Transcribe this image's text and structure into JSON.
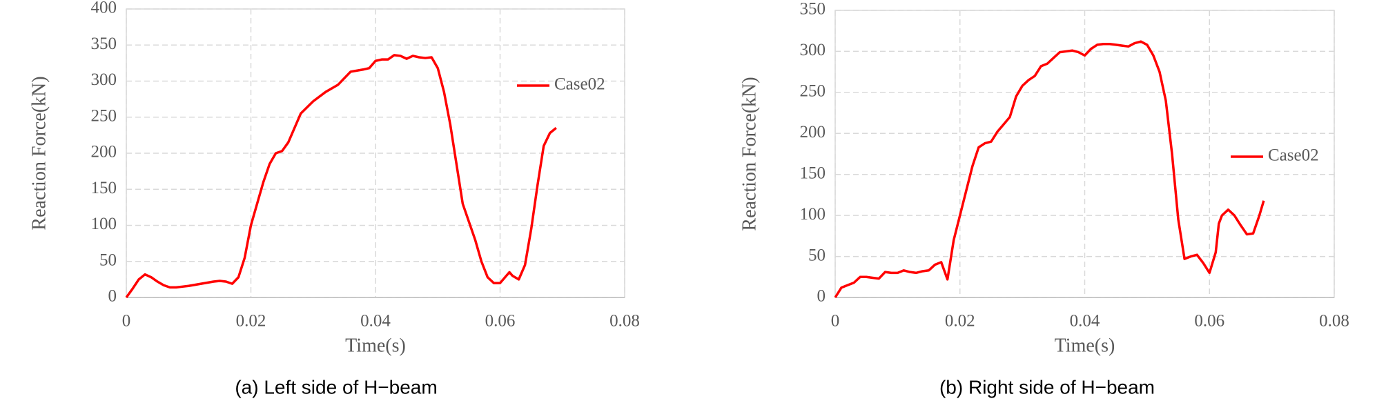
{
  "chart_data": [
    {
      "type": "line",
      "caption": "(a) Left side of H−beam",
      "xlabel": "Time(s)",
      "ylabel": "Reaction Force(kN)",
      "xlim": [
        0,
        0.08
      ],
      "xticks": [
        0,
        0.02,
        0.04,
        0.06,
        0.08
      ],
      "ylim": [
        0,
        400
      ],
      "yticks": [
        0,
        50,
        100,
        150,
        200,
        250,
        300,
        350,
        400
      ],
      "grid": true,
      "legend": "right",
      "series": [
        {
          "name": "Case02",
          "color": "#ff0000",
          "x": [
            0,
            0.001,
            0.002,
            0.003,
            0.004,
            0.005,
            0.006,
            0.007,
            0.008,
            0.009,
            0.01,
            0.012,
            0.014,
            0.015,
            0.016,
            0.017,
            0.018,
            0.019,
            0.02,
            0.021,
            0.022,
            0.023,
            0.024,
            0.025,
            0.026,
            0.027,
            0.028,
            0.03,
            0.032,
            0.034,
            0.036,
            0.038,
            0.039,
            0.04,
            0.041,
            0.042,
            0.043,
            0.044,
            0.045,
            0.046,
            0.047,
            0.048,
            0.049,
            0.05,
            0.051,
            0.052,
            0.053,
            0.054,
            0.055,
            0.056,
            0.057,
            0.058,
            0.059,
            0.06,
            0.061,
            0.0615,
            0.062,
            0.063,
            0.064,
            0.065,
            0.066,
            0.067,
            0.068,
            0.069
          ],
          "values": [
            0,
            12,
            25,
            32,
            28,
            22,
            17,
            14,
            14,
            15,
            16,
            19,
            22,
            23,
            22,
            19,
            28,
            55,
            100,
            130,
            160,
            185,
            200,
            203,
            215,
            235,
            255,
            272,
            285,
            295,
            313,
            316,
            318,
            328,
            330,
            330,
            336,
            335,
            331,
            335,
            333,
            332,
            333,
            318,
            285,
            240,
            185,
            130,
            105,
            80,
            50,
            28,
            20,
            20,
            30,
            35,
            30,
            25,
            45,
            95,
            155,
            210,
            228,
            235
          ]
        }
      ]
    },
    {
      "type": "line",
      "caption": "(b) Right side of H−beam",
      "xlabel": "Time(s)",
      "ylabel": "Reaction Force(kN)",
      "xlim": [
        0,
        0.08
      ],
      "xticks": [
        0,
        0.02,
        0.04,
        0.06,
        0.08
      ],
      "ylim": [
        0,
        350
      ],
      "yticks": [
        0,
        50,
        100,
        150,
        200,
        250,
        300,
        350
      ],
      "grid": true,
      "legend": "right",
      "series": [
        {
          "name": "Case02",
          "color": "#ff0000",
          "x": [
            0,
            0.001,
            0.002,
            0.003,
            0.004,
            0.005,
            0.006,
            0.007,
            0.008,
            0.009,
            0.01,
            0.011,
            0.012,
            0.013,
            0.014,
            0.015,
            0.016,
            0.017,
            0.018,
            0.019,
            0.02,
            0.021,
            0.022,
            0.023,
            0.024,
            0.025,
            0.026,
            0.027,
            0.028,
            0.029,
            0.03,
            0.031,
            0.032,
            0.033,
            0.034,
            0.035,
            0.036,
            0.037,
            0.038,
            0.039,
            0.04,
            0.041,
            0.042,
            0.043,
            0.044,
            0.045,
            0.046,
            0.047,
            0.048,
            0.049,
            0.05,
            0.051,
            0.052,
            0.053,
            0.054,
            0.055,
            0.056,
            0.057,
            0.058,
            0.059,
            0.06,
            0.061,
            0.0615,
            0.062,
            0.063,
            0.064,
            0.065,
            0.066,
            0.067,
            0.068,
            0.0687
          ],
          "values": [
            0,
            12,
            15,
            18,
            25,
            25,
            24,
            23,
            31,
            30,
            30,
            33,
            31,
            30,
            32,
            33,
            40,
            43,
            22,
            70,
            100,
            130,
            160,
            183,
            188,
            190,
            202,
            211,
            220,
            245,
            258,
            265,
            270,
            282,
            285,
            292,
            299,
            300,
            301,
            299,
            295,
            303,
            308,
            309,
            309,
            308,
            307,
            306,
            310,
            312,
            308,
            295,
            275,
            240,
            175,
            95,
            47,
            50,
            52,
            42,
            30,
            55,
            90,
            100,
            107,
            100,
            88,
            77,
            78,
            100,
            118
          ]
        }
      ]
    }
  ]
}
